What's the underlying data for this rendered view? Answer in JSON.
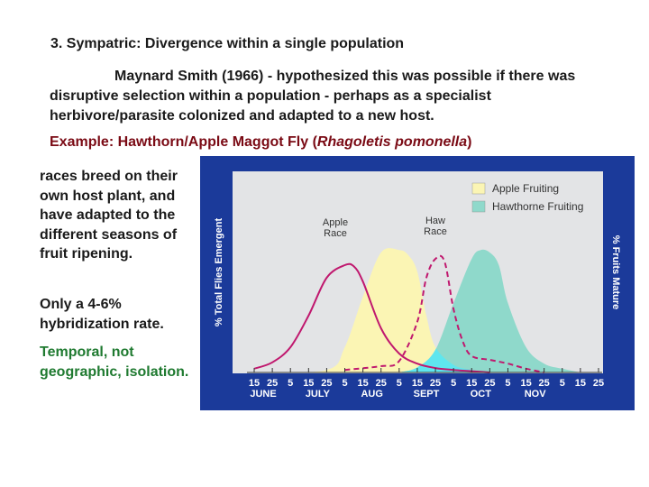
{
  "heading": "3. Sympatric: Divergence within a single population",
  "paragraph": "Maynard Smith (1966) - hypothesized this was possible if there was disruptive selection within a population - perhaps as a specialist herbivore/parasite colonized and adapted to a new host.",
  "example": {
    "prefix": "Example: Hawthorn/Apple Maggot Fly (",
    "species": "Rhagoletis pomonella",
    "suffix": ")"
  },
  "side_notes": {
    "races": "races breed on their own host plant, and have adapted to the different seasons of fruit ripening.",
    "hybridization": "Only a 4-6% hybridization rate.",
    "temporal": "Temporal, not geographic, isolation."
  },
  "colors": {
    "figure_frame": "#1b3a9a",
    "plot_bg": "#e3e4e6",
    "apple_fruiting": "#fbf5b4",
    "hawthorne_fruiting": "#8fd9cb",
    "overlap": "#5fe6ee",
    "race_line": "#c0186e",
    "example_text": "#7a0a14",
    "temporal_text": "#1f7a30"
  },
  "chart_data": {
    "type": "area",
    "ylabel": "% Total Flies Emergent",
    "ylabel_right": "% Fruits Mature",
    "x_tick_labels": [
      "15",
      "25",
      "5",
      "15",
      "25",
      "5",
      "15",
      "25",
      "5",
      "15",
      "25",
      "5",
      "15",
      "25",
      "5",
      "15",
      "25",
      "5",
      "15",
      "25"
    ],
    "month_labels": [
      "JUNE",
      "JULY",
      "AUG",
      "SEPT",
      "OCT",
      "NOV"
    ],
    "legend": [
      "Apple Fruiting",
      "Hawthorne Fruiting"
    ],
    "legend_position": "top-right",
    "curve_labels": [
      {
        "label": "Apple Race",
        "lines": [
          "Apple",
          "Race"
        ]
      },
      {
        "label": "Haw Race",
        "lines": [
          "Haw",
          "Race"
        ]
      }
    ],
    "series": [
      {
        "name": "Apple Fruiting",
        "kind": "area",
        "x": [
          0,
          4,
          5,
          6,
          7,
          8,
          8.5,
          9,
          9.5,
          10,
          11,
          12,
          13
        ],
        "y": [
          0,
          0.02,
          0.2,
          0.6,
          0.95,
          0.97,
          0.93,
          0.8,
          0.45,
          0.2,
          0.06,
          0.02,
          0
        ]
      },
      {
        "name": "Hawthorne Fruiting",
        "kind": "area",
        "x": [
          8,
          9,
          10,
          11,
          12,
          12.5,
          13,
          13.5,
          14,
          15,
          16,
          17,
          18
        ],
        "y": [
          0,
          0.04,
          0.18,
          0.55,
          0.9,
          0.97,
          0.95,
          0.85,
          0.55,
          0.2,
          0.07,
          0.03,
          0
        ]
      },
      {
        "name": "Apple Race",
        "kind": "line",
        "x": [
          0,
          1,
          2,
          3,
          4,
          5,
          5.5,
          6,
          7,
          8,
          9,
          10,
          11,
          12,
          13
        ],
        "y": [
          0.03,
          0.08,
          0.2,
          0.45,
          0.75,
          0.85,
          0.84,
          0.72,
          0.35,
          0.15,
          0.07,
          0.035,
          0.02,
          0.01,
          0
        ]
      },
      {
        "name": "Haw Race",
        "kind": "dashed-line",
        "x": [
          5,
          7,
          8,
          9,
          9.5,
          10,
          10.5,
          11,
          11.5,
          12,
          13,
          14,
          15,
          16
        ],
        "y": [
          0.02,
          0.05,
          0.09,
          0.4,
          0.75,
          0.9,
          0.88,
          0.5,
          0.25,
          0.13,
          0.1,
          0.07,
          0.03,
          0
        ]
      }
    ]
  }
}
